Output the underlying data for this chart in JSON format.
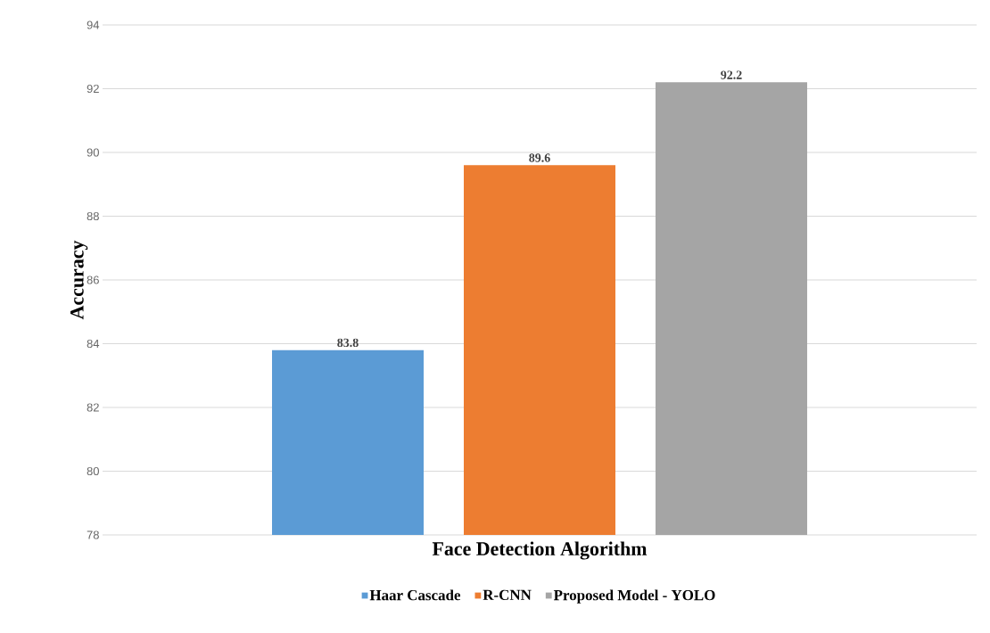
{
  "chart_data": {
    "type": "bar",
    "xlabel": "Face Detection Algorithm",
    "ylabel": "Accuracy",
    "categories": [
      null
    ],
    "series": [
      {
        "name": "Haar Cascade",
        "color": "#5b9bd5",
        "values": [
          83.8
        ]
      },
      {
        "name": "R-CNN",
        "color": "#ed7d31",
        "values": [
          89.6
        ]
      },
      {
        "name": "Proposed Model - YOLO",
        "color": "#a5a5a5",
        "values": [
          92.2
        ]
      }
    ],
    "ylim": [
      78,
      94
    ],
    "yticks": [
      78,
      80,
      82,
      84,
      86,
      88,
      90,
      92,
      94
    ],
    "grid": "y",
    "legend": "bottom",
    "data_labels": true
  }
}
